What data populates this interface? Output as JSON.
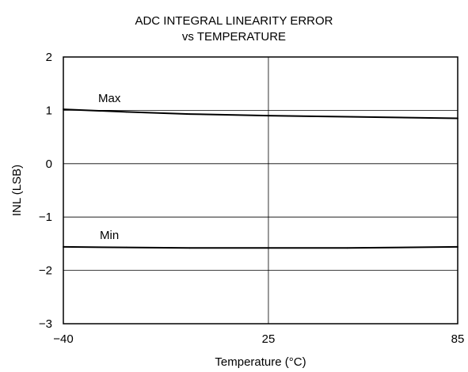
{
  "chart_data": {
    "type": "line",
    "title_lines": [
      "ADC INTEGRAL LINEARITY ERROR",
      "vs TEMPERATURE"
    ],
    "xlabel": "Temperature (°C)",
    "ylabel": "INL (LSB)",
    "xlim": [
      -40,
      85
    ],
    "ylim": [
      -3,
      2
    ],
    "x_ticks": [
      -40,
      25,
      85
    ],
    "x_tick_labels": [
      "−40",
      "25",
      "85"
    ],
    "y_ticks": [
      2,
      1,
      0,
      -1,
      -2,
      -3
    ],
    "y_tick_labels": [
      "2",
      "1",
      "0",
      "−1",
      "−2",
      "−3"
    ],
    "grid": true,
    "series": [
      {
        "name": "Max",
        "x": [
          -40,
          -20,
          0,
          25,
          50,
          85
        ],
        "y": [
          1.02,
          0.97,
          0.93,
          0.9,
          0.88,
          0.85
        ]
      },
      {
        "name": "Min",
        "x": [
          -40,
          -20,
          0,
          25,
          50,
          85
        ],
        "y": [
          -1.56,
          -1.57,
          -1.58,
          -1.58,
          -1.58,
          -1.56
        ]
      }
    ]
  }
}
